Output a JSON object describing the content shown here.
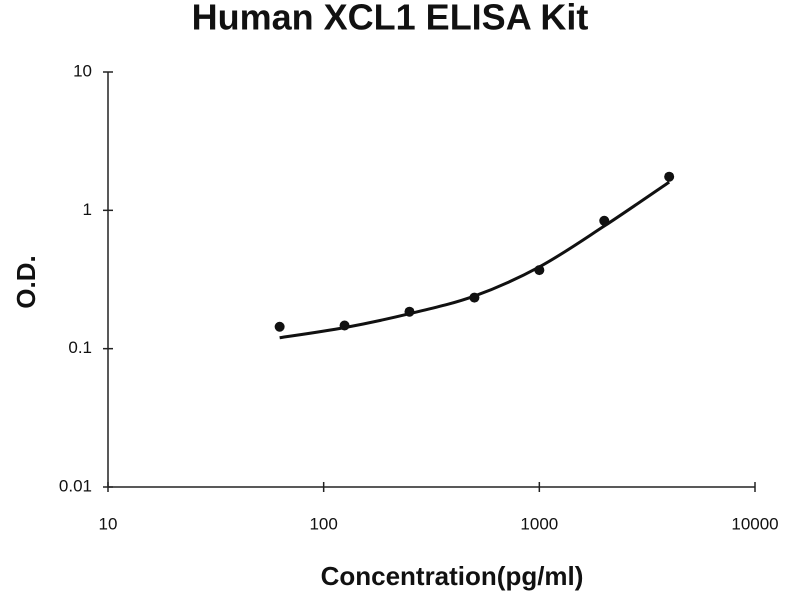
{
  "chart_data": {
    "type": "scatter",
    "title": "Human XCL1 ELISA Kit",
    "x_label": "Concentration(pg/ml)",
    "y_label": "O.D.",
    "x_log": true,
    "y_log": true,
    "xlim": [
      10,
      10000
    ],
    "ylim": [
      0.01,
      10
    ],
    "xticks": [
      10,
      100,
      1000,
      10000
    ],
    "yticks": [
      0.01,
      0.1,
      1,
      10
    ],
    "series": [
      {
        "style": "markers",
        "color": "#111111",
        "x": [
          62.5,
          125,
          250,
          500,
          1000,
          2000,
          4000
        ],
        "values": [
          0.144,
          0.147,
          0.185,
          0.234,
          0.37,
          0.84,
          1.75
        ]
      },
      {
        "style": "line",
        "color": "#111111",
        "x": [
          62.5,
          125,
          250,
          500,
          1000,
          2000,
          4000
        ],
        "values": [
          0.12,
          0.142,
          0.179,
          0.24,
          0.39,
          0.77,
          1.6
        ]
      }
    ]
  }
}
